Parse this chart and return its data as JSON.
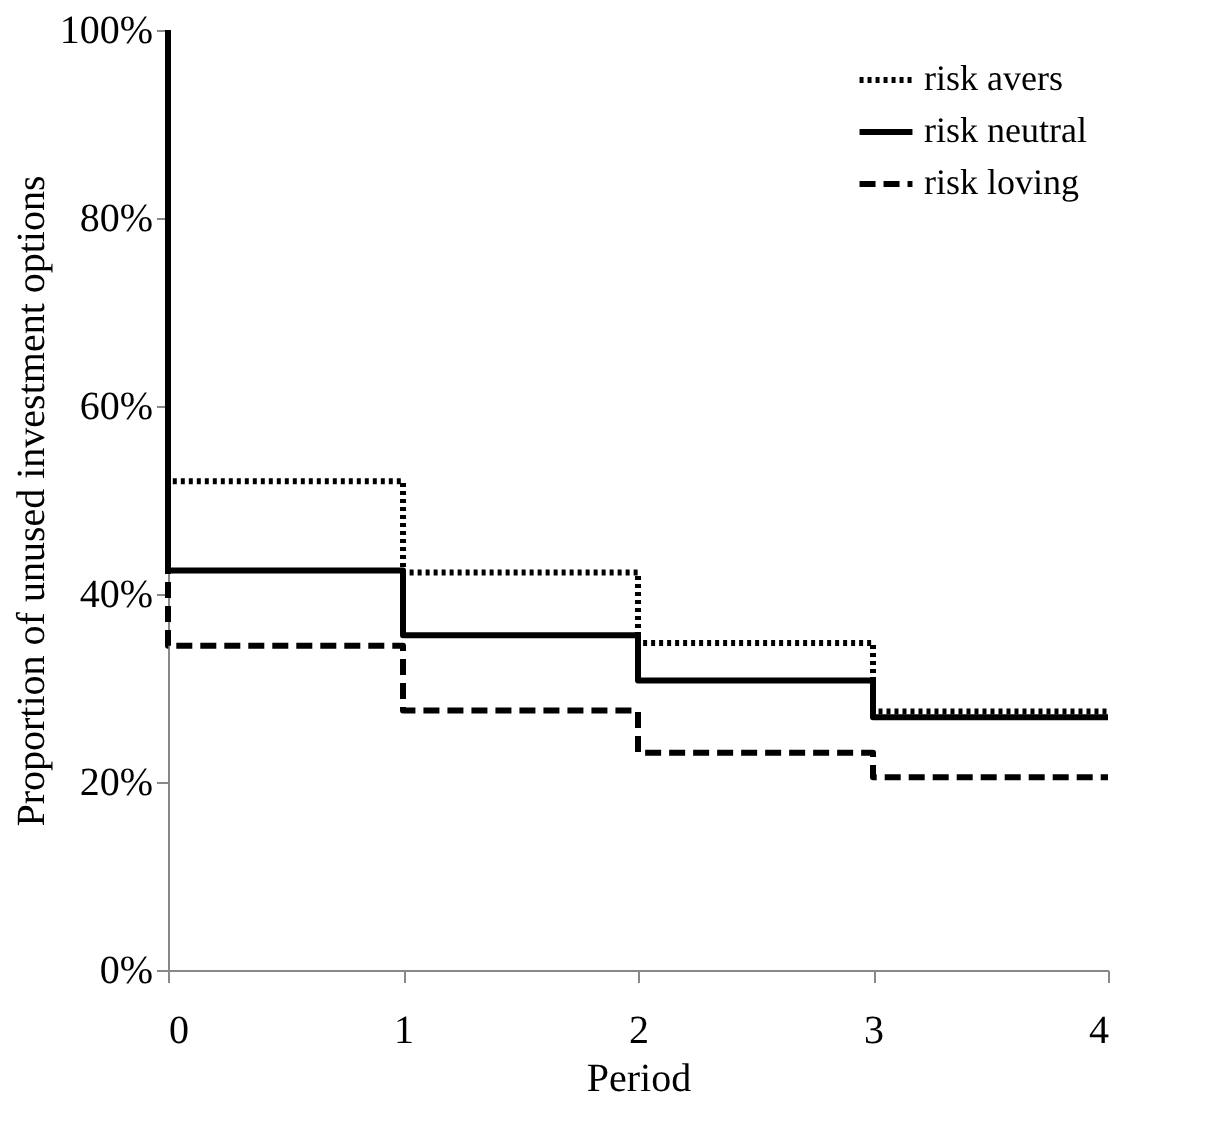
{
  "chart_data": {
    "type": "step",
    "xlabel": "Period",
    "ylabel": "Proportion of unused investment options",
    "x": [
      0,
      0,
      1,
      2,
      3,
      4
    ],
    "series": [
      {
        "name": "risk avers",
        "color": "#000000",
        "line_style": "dotted",
        "values": [
          100,
          52,
          42.3,
          34.8,
          27.5,
          27.5
        ]
      },
      {
        "name": "risk neutral",
        "color": "#000000",
        "line_style": "solid",
        "values": [
          100,
          42.5,
          35.6,
          30.8,
          26.9,
          26.9
        ]
      },
      {
        "name": "risk loving",
        "color": "#000000",
        "line_style": "dashed",
        "values": [
          100,
          34.5,
          27.6,
          23.1,
          20.5,
          20.5
        ]
      }
    ],
    "xlim": [
      0,
      4
    ],
    "xticks": [
      0,
      1,
      2,
      3,
      4
    ],
    "ylim": [
      0,
      100
    ],
    "yticks": [
      {
        "value": 0,
        "label": "0%"
      },
      {
        "value": 20,
        "label": "20%"
      },
      {
        "value": 40,
        "label": "40%"
      },
      {
        "value": 60,
        "label": "60%"
      },
      {
        "value": 80,
        "label": "80%"
      },
      {
        "value": 100,
        "label": "100%"
      }
    ],
    "grid": false,
    "legend": "top right"
  }
}
